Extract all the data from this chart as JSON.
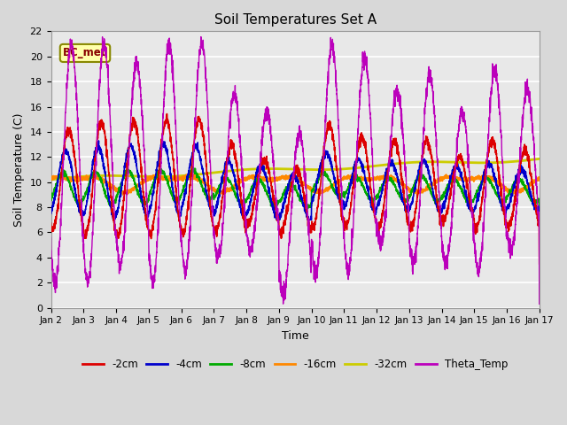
{
  "title": "Soil Temperatures Set A",
  "xlabel": "Time",
  "ylabel": "Soil Temperature (C)",
  "ylim": [
    0,
    22
  ],
  "xlim_days": [
    2,
    17
  ],
  "annotation": "BC_met",
  "background_color": "#d8d8d8",
  "plot_bg_color": "#e8e8e8",
  "grid_color": "white",
  "series": {
    "2cm": {
      "color": "#dd0000",
      "lw": 1.2
    },
    "4cm": {
      "color": "#0000cc",
      "lw": 1.2
    },
    "8cm": {
      "color": "#00aa00",
      "lw": 1.2
    },
    "16cm": {
      "color": "#ff8800",
      "lw": 1.5
    },
    "32cm": {
      "color": "#cccc00",
      "lw": 2.0
    },
    "Theta_Temp": {
      "color": "#bb00bb",
      "lw": 1.0
    }
  },
  "xtick_labels": [
    "Jan 2",
    "Jan 3",
    "Jan 4",
    "Jan 5",
    "Jan 6",
    "Jan 7",
    "Jan 8",
    "Jan 9",
    "Jan 10",
    "Jan 11",
    "Jan 12",
    "Jan 13",
    "Jan 14",
    "Jan 15",
    "Jan 16",
    "Jan 17"
  ],
  "ytick_vals": [
    0,
    2,
    4,
    6,
    8,
    10,
    12,
    14,
    16,
    18,
    20,
    22
  ],
  "legend_entries": [
    "-2cm",
    "-4cm",
    "-8cm",
    "-16cm",
    "-32cm",
    "Theta_Temp"
  ],
  "legend_colors": [
    "#dd0000",
    "#0000cc",
    "#00aa00",
    "#ff8800",
    "#cccc00",
    "#bb00bb"
  ]
}
